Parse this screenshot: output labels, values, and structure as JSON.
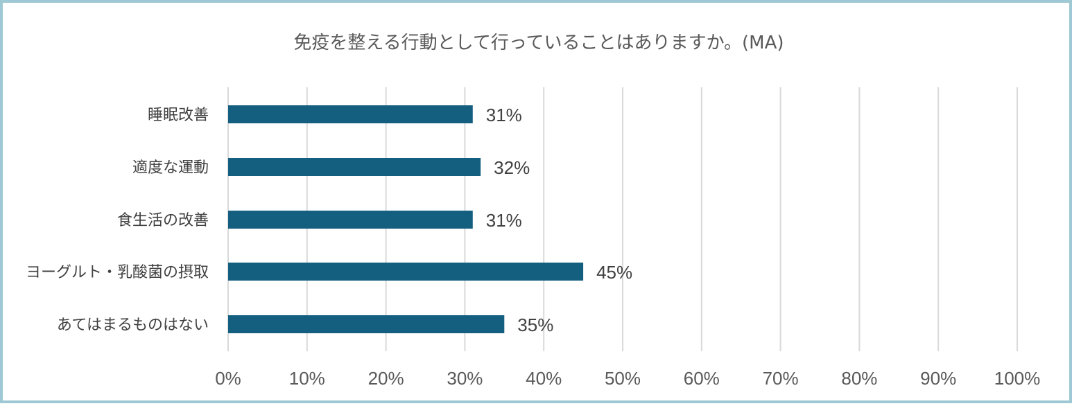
{
  "chart_data": {
    "type": "bar",
    "orientation": "horizontal",
    "title": "免疫を整える行動として行っていることはありますか。(MA)",
    "categories": [
      "睡眠改善",
      "適度な運動",
      "食生活の改善",
      "ヨーグルト・乳酸菌の摂取",
      "あてはまるものはない"
    ],
    "values": [
      31,
      32,
      31,
      45,
      35
    ],
    "value_labels": [
      "31%",
      "32%",
      "31%",
      "45%",
      "35%"
    ],
    "xlim": [
      0,
      100
    ],
    "ticks": [
      "0%",
      "10%",
      "20%",
      "30%",
      "40%",
      "50%",
      "60%",
      "70%",
      "80%",
      "90%",
      "100%"
    ],
    "grid": true,
    "bar_color": "#145e80"
  }
}
